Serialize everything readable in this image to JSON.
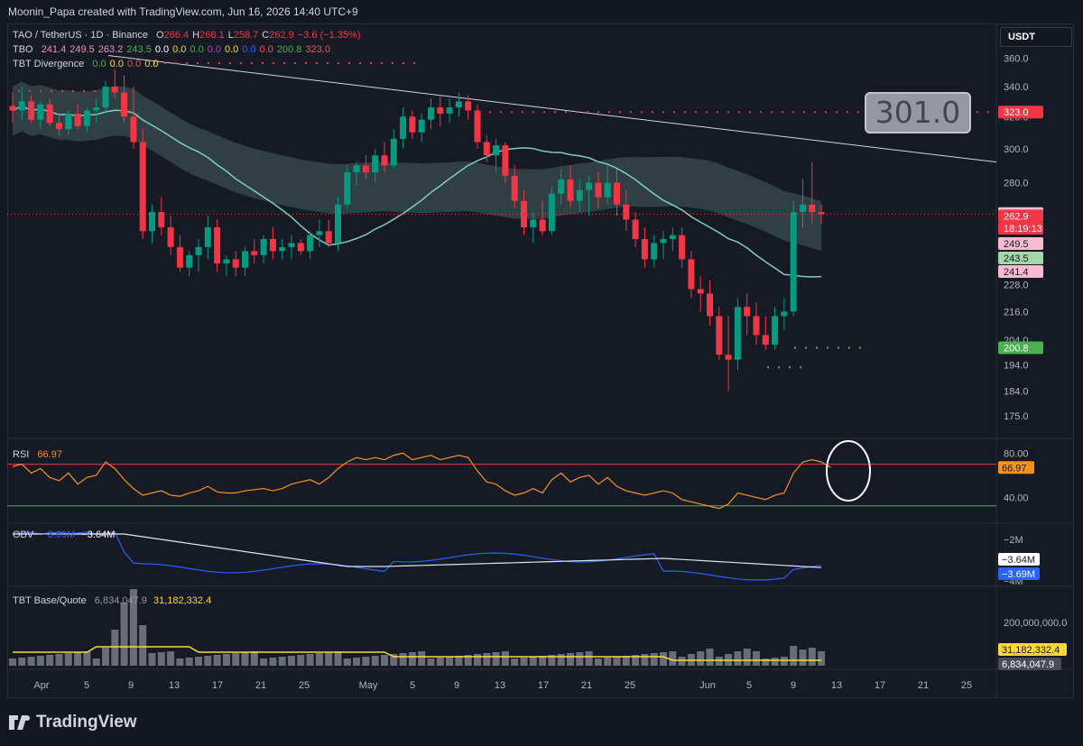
{
  "header": {
    "credit": "Moonin_Papa created with TradingView.com, Jun 16, 2026 14:40 UTC+9"
  },
  "legend": {
    "symbol": "TAO / TetherUS · 1D · Binance",
    "ohlc": [
      {
        "k": "O",
        "v": "266.4"
      },
      {
        "k": "H",
        "v": "268.1"
      },
      {
        "k": "L",
        "v": "258.7"
      },
      {
        "k": "C",
        "v": "262.9"
      },
      {
        "k": "",
        "v": "−3.6 (−1.35%)"
      }
    ],
    "tbo_label": "TBO",
    "tbo_values": [
      "241.4",
      "249.5",
      "263.2",
      "243.5",
      "0.0",
      "0.0",
      "0.0",
      "0.0",
      "0.0",
      "0.0",
      "0.0",
      "200.8",
      "323.0"
    ],
    "tbo_colors": [
      "#f48fb1",
      "#f48fb1",
      "#f48fb1",
      "#4caf50",
      "#ffffff",
      "#fdd835",
      "#4caf50",
      "#ab47bc",
      "#fdd835",
      "#2962ff",
      "#ef5350",
      "#4caf50",
      "#ef5350"
    ],
    "div_label": "TBT Divergence",
    "div_values": [
      "0.0",
      "0.0",
      "0.0",
      "0.0"
    ],
    "div_colors": [
      "#4caf50",
      "#fdd835",
      "#ef5350",
      "#fdd835"
    ]
  },
  "currency": "USDT",
  "callout": "301.0",
  "price_axis": {
    "ticks": [
      "360.0",
      "340.0",
      "320.0",
      "300.0",
      "280.0",
      "263.2",
      "249.5",
      "243.5",
      "241.4",
      "228.0",
      "216.0",
      "204.0",
      "194.0",
      "184.0",
      "175.0"
    ],
    "labels": [
      {
        "text": "323.0",
        "bg": "#f23645",
        "fg": "#ffffff"
      },
      {
        "text": "263.2",
        "bg": "#f8bbd0",
        "fg": "#131722"
      },
      {
        "text": "262.9",
        "bg": "#f23645",
        "fg": "#ffffff"
      },
      {
        "text": "18:19:13",
        "bg": "#f23645",
        "fg": "#ffffff"
      },
      {
        "text": "249.5",
        "bg": "#f8bbd0",
        "fg": "#131722"
      },
      {
        "text": "243.5",
        "bg": "#a5d6a7",
        "fg": "#131722"
      },
      {
        "text": "241.4",
        "bg": "#f8bbd0",
        "fg": "#131722"
      },
      {
        "text": "200.8",
        "bg": "#4caf50",
        "fg": "#ffffff"
      }
    ]
  },
  "rsi": {
    "label": "RSI",
    "value": "66.97",
    "ticks": [
      "80.00",
      "40.00"
    ],
    "color": "#f7931a"
  },
  "obv": {
    "label": "OBV",
    "value1": "−3.69M",
    "value2": "−3.64M",
    "ticks": [
      "−2M",
      "−4M"
    ],
    "marker_white": "−3.64M",
    "marker_blue": "−3.69M"
  },
  "volume": {
    "label": "TBT Base/Quote",
    "value1": "6,834,047.9",
    "value2": "31,182,332.4",
    "ticks": [
      "200,000,000.0"
    ],
    "marker_yellow": "31,182,332.4",
    "marker_gray": "6,834,047.9"
  },
  "time_axis": {
    "ticks": [
      "Apr",
      "5",
      "9",
      "13",
      "17",
      "21",
      "25",
      "May",
      "5",
      "9",
      "13",
      "17",
      "21",
      "25",
      "Jun",
      "5",
      "9",
      "13",
      "17",
      "21",
      "25"
    ]
  },
  "footer": {
    "brand": "TradingView"
  },
  "chart_data": {
    "type": "candlestick",
    "title": "TAO / TetherUS · 1D · Binance",
    "ylim": [
      170,
      365
    ],
    "ylabel": "",
    "y_scale": "log",
    "xlabel": "",
    "up_color": "#089981",
    "down_color": "#f23645",
    "candles": [
      [
        327,
        336,
        316,
        324
      ],
      [
        324,
        340,
        318,
        330
      ],
      [
        330,
        334,
        316,
        318
      ],
      [
        318,
        330,
        312,
        328
      ],
      [
        328,
        332,
        314,
        316
      ],
      [
        316,
        322,
        308,
        312
      ],
      [
        312,
        324,
        308,
        322
      ],
      [
        322,
        328,
        312,
        314
      ],
      [
        314,
        326,
        310,
        324
      ],
      [
        324,
        332,
        316,
        326
      ],
      [
        326,
        344,
        322,
        340
      ],
      [
        340,
        352,
        332,
        336
      ],
      [
        336,
        348,
        316,
        320
      ],
      [
        320,
        340,
        300,
        304
      ],
      [
        304,
        312,
        250,
        254
      ],
      [
        254,
        268,
        248,
        264
      ],
      [
        264,
        272,
        252,
        256
      ],
      [
        256,
        262,
        242,
        246
      ],
      [
        246,
        252,
        234,
        236
      ],
      [
        236,
        244,
        232,
        242
      ],
      [
        242,
        250,
        234,
        246
      ],
      [
        246,
        262,
        240,
        256
      ],
      [
        256,
        260,
        234,
        238
      ],
      [
        238,
        242,
        232,
        240
      ],
      [
        240,
        244,
        232,
        236
      ],
      [
        236,
        246,
        232,
        244
      ],
      [
        244,
        250,
        238,
        242
      ],
      [
        242,
        252,
        238,
        250
      ],
      [
        250,
        256,
        240,
        244
      ],
      [
        244,
        250,
        240,
        246
      ],
      [
        246,
        252,
        240,
        248
      ],
      [
        248,
        250,
        242,
        244
      ],
      [
        244,
        254,
        240,
        252
      ],
      [
        252,
        260,
        246,
        254
      ],
      [
        254,
        260,
        246,
        248
      ],
      [
        248,
        272,
        244,
        268
      ],
      [
        268,
        290,
        266,
        286
      ],
      [
        286,
        292,
        278,
        290
      ],
      [
        290,
        296,
        282,
        286
      ],
      [
        286,
        300,
        280,
        296
      ],
      [
        296,
        304,
        286,
        290
      ],
      [
        290,
        312,
        288,
        306
      ],
      [
        306,
        326,
        300,
        320
      ],
      [
        320,
        324,
        306,
        310
      ],
      [
        310,
        322,
        304,
        318
      ],
      [
        318,
        332,
        312,
        326
      ],
      [
        326,
        334,
        314,
        322
      ],
      [
        322,
        332,
        316,
        326
      ],
      [
        326,
        336,
        320,
        330
      ],
      [
        330,
        334,
        318,
        324
      ],
      [
        324,
        328,
        300,
        304
      ],
      [
        304,
        308,
        292,
        296
      ],
      [
        296,
        306,
        286,
        302
      ],
      [
        302,
        304,
        280,
        284
      ],
      [
        284,
        290,
        266,
        270
      ],
      [
        270,
        276,
        252,
        256
      ],
      [
        256,
        264,
        248,
        260
      ],
      [
        260,
        270,
        252,
        254
      ],
      [
        254,
        278,
        252,
        274
      ],
      [
        274,
        288,
        268,
        282
      ],
      [
        282,
        290,
        266,
        270
      ],
      [
        270,
        282,
        264,
        276
      ],
      [
        276,
        284,
        262,
        280
      ],
      [
        280,
        286,
        266,
        272
      ],
      [
        272,
        290,
        268,
        280
      ],
      [
        280,
        288,
        262,
        268
      ],
      [
        268,
        276,
        254,
        260
      ],
      [
        260,
        264,
        246,
        250
      ],
      [
        250,
        256,
        236,
        240
      ],
      [
        240,
        252,
        236,
        248
      ],
      [
        248,
        254,
        240,
        250
      ],
      [
        250,
        256,
        244,
        252
      ],
      [
        252,
        256,
        236,
        240
      ],
      [
        240,
        244,
        222,
        226
      ],
      [
        226,
        232,
        216,
        224
      ],
      [
        224,
        230,
        210,
        214
      ],
      [
        214,
        218,
        196,
        198
      ],
      [
        198,
        214,
        184,
        196
      ],
      [
        196,
        222,
        192,
        218
      ],
      [
        218,
        224,
        206,
        214
      ],
      [
        214,
        220,
        202,
        206
      ],
      [
        206,
        214,
        200,
        202
      ],
      [
        202,
        218,
        200,
        214
      ],
      [
        214,
        222,
        208,
        216
      ],
      [
        216,
        270,
        214,
        264
      ],
      [
        264,
        282,
        256,
        268
      ],
      [
        268,
        292,
        258,
        264
      ],
      [
        264,
        268,
        258,
        262.9
      ]
    ],
    "rsi": [
      68,
      70,
      62,
      66,
      58,
      55,
      62,
      52,
      58,
      60,
      72,
      66,
      56,
      48,
      42,
      44,
      46,
      42,
      41,
      44,
      46,
      50,
      45,
      44,
      44,
      46,
      47,
      48,
      46,
      48,
      52,
      54,
      56,
      52,
      58,
      66,
      72,
      76,
      74,
      76,
      74,
      78,
      80,
      74,
      76,
      78,
      74,
      76,
      78,
      76,
      64,
      54,
      52,
      46,
      42,
      44,
      48,
      44,
      56,
      62,
      54,
      58,
      60,
      52,
      58,
      50,
      46,
      44,
      42,
      44,
      46,
      44,
      38,
      36,
      34,
      32,
      30,
      34,
      44,
      42,
      40,
      38,
      42,
      44,
      62,
      72,
      74,
      72,
      66.97
    ],
    "rsi_upper": 70,
    "rsi_lower": 30
  }
}
